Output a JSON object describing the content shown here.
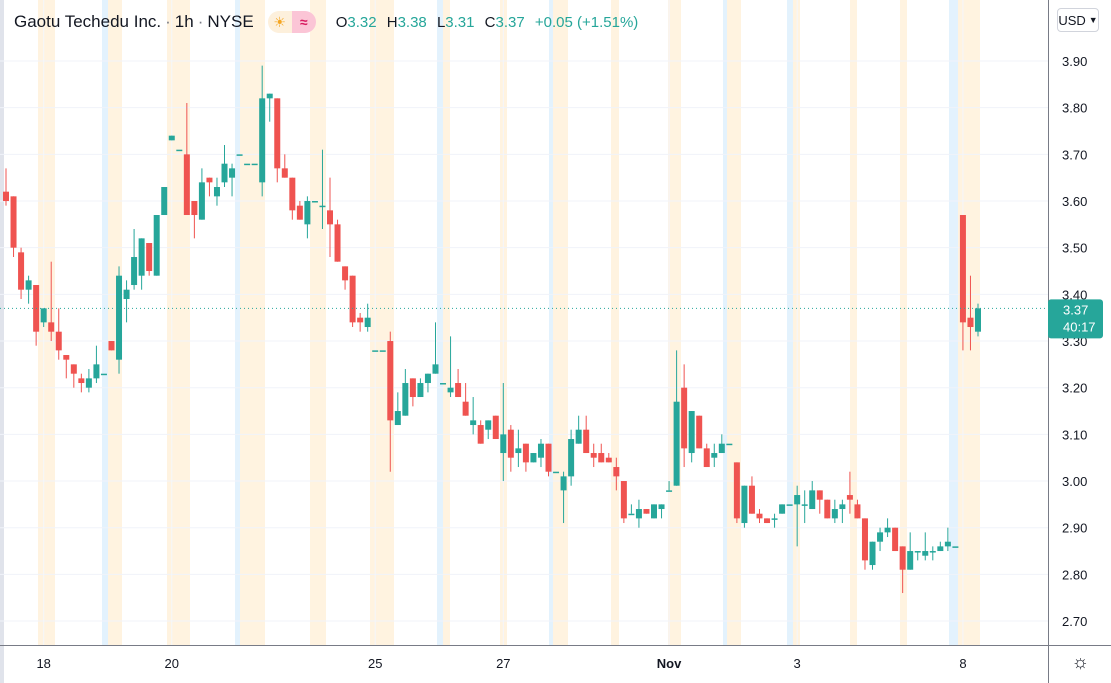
{
  "legend": {
    "symbol": "Gaotu Techedu Inc.",
    "interval": "1h",
    "exchange": "NYSE",
    "separator": "·",
    "session_icon": "sun-icon",
    "adjust_icon": "wave-icon",
    "open_label": "O",
    "open": "3.32",
    "high_label": "H",
    "high": "3.38",
    "low_label": "L",
    "low": "3.31",
    "close_label": "C",
    "close": "3.37",
    "change": "+0.05 (+1.51%)"
  },
  "currency": "USD",
  "last_price": {
    "price": "3.37",
    "countdown": "40:17"
  },
  "settings_icon": "gear-icon",
  "colors": {
    "up": "#26a69a",
    "down": "#ef5350",
    "premarket": "#e3f2fd",
    "postmarket": "#fff3e0"
  },
  "chart_data": {
    "type": "candlestick",
    "ylim": [
      2.65,
      3.93
    ],
    "y_ticks": [
      "2.70",
      "2.80",
      "2.90",
      "3.00",
      "3.10",
      "3.20",
      "3.30",
      "3.40",
      "3.50",
      "3.60",
      "3.70",
      "3.80",
      "3.90"
    ],
    "x_tick_labels": [
      {
        "label": "18",
        "candle": 5
      },
      {
        "label": "20",
        "candle": 22
      },
      {
        "label": "25",
        "candle": 49
      },
      {
        "label": "27",
        "candle": 66
      },
      {
        "label": "Nov",
        "candle": 88
      },
      {
        "label": "3",
        "candle": 105
      },
      {
        "label": "8",
        "candle": 127
      }
    ],
    "grid": true,
    "last_close": 3.37,
    "ohlc": [
      [
        3.62,
        3.67,
        3.59,
        3.6
      ],
      [
        3.61,
        3.61,
        3.48,
        3.5
      ],
      [
        3.49,
        3.5,
        3.39,
        3.41
      ],
      [
        3.41,
        3.44,
        3.38,
        3.43
      ],
      [
        3.42,
        3.42,
        3.29,
        3.32
      ],
      [
        3.34,
        3.37,
        3.33,
        3.37
      ],
      [
        3.34,
        3.47,
        3.3,
        3.32
      ],
      [
        3.32,
        3.37,
        3.26,
        3.28
      ],
      [
        3.27,
        3.27,
        3.22,
        3.26
      ],
      [
        3.25,
        3.25,
        3.2,
        3.23
      ],
      [
        3.22,
        3.23,
        3.19,
        3.21
      ],
      [
        3.2,
        3.24,
        3.19,
        3.22
      ],
      [
        3.22,
        3.29,
        3.21,
        3.25
      ],
      [
        3.23,
        3.23,
        3.23,
        3.23
      ],
      [
        3.3,
        3.3,
        3.28,
        3.28
      ],
      [
        3.26,
        3.46,
        3.23,
        3.44
      ],
      [
        3.39,
        3.43,
        3.34,
        3.41
      ],
      [
        3.42,
        3.54,
        3.41,
        3.48
      ],
      [
        3.44,
        3.52,
        3.41,
        3.52
      ],
      [
        3.51,
        3.51,
        3.44,
        3.45
      ],
      [
        3.44,
        3.57,
        3.44,
        3.57
      ],
      [
        3.57,
        3.63,
        3.57,
        3.63
      ],
      [
        3.73,
        3.74,
        3.73,
        3.74
      ],
      [
        3.71,
        3.71,
        3.71,
        3.71
      ],
      [
        3.7,
        3.81,
        3.57,
        3.57
      ],
      [
        3.6,
        3.6,
        3.52,
        3.57
      ],
      [
        3.56,
        3.67,
        3.56,
        3.64
      ],
      [
        3.65,
        3.65,
        3.61,
        3.64
      ],
      [
        3.61,
        3.65,
        3.59,
        3.63
      ],
      [
        3.64,
        3.72,
        3.63,
        3.68
      ],
      [
        3.65,
        3.68,
        3.61,
        3.67
      ],
      [
        3.7,
        3.7,
        3.7,
        3.7
      ],
      [
        3.68,
        3.68,
        3.68,
        3.68
      ],
      [
        3.68,
        3.68,
        3.68,
        3.68
      ],
      [
        3.64,
        3.89,
        3.61,
        3.82
      ],
      [
        3.82,
        3.83,
        3.77,
        3.83
      ],
      [
        3.82,
        3.82,
        3.64,
        3.67
      ],
      [
        3.67,
        3.7,
        3.65,
        3.65
      ],
      [
        3.65,
        3.65,
        3.56,
        3.58
      ],
      [
        3.59,
        3.6,
        3.56,
        3.56
      ],
      [
        3.55,
        3.61,
        3.52,
        3.6
      ],
      [
        3.6,
        3.6,
        3.6,
        3.6
      ],
      [
        3.59,
        3.71,
        3.54,
        3.59
      ],
      [
        3.58,
        3.65,
        3.48,
        3.55
      ],
      [
        3.55,
        3.56,
        3.47,
        3.47
      ],
      [
        3.46,
        3.46,
        3.41,
        3.43
      ],
      [
        3.44,
        3.44,
        3.33,
        3.34
      ],
      [
        3.35,
        3.36,
        3.32,
        3.34
      ],
      [
        3.33,
        3.38,
        3.32,
        3.35
      ],
      [
        3.28,
        3.28,
        3.28,
        3.28
      ],
      [
        3.28,
        3.28,
        3.28,
        3.28
      ],
      [
        3.3,
        3.32,
        3.02,
        3.13
      ],
      [
        3.12,
        3.19,
        3.12,
        3.15
      ],
      [
        3.14,
        3.24,
        3.14,
        3.21
      ],
      [
        3.22,
        3.22,
        3.16,
        3.18
      ],
      [
        3.18,
        3.22,
        3.18,
        3.21
      ],
      [
        3.21,
        3.23,
        3.19,
        3.23
      ],
      [
        3.23,
        3.34,
        3.23,
        3.25
      ],
      [
        3.21,
        3.21,
        3.21,
        3.21
      ],
      [
        3.19,
        3.31,
        3.18,
        3.2
      ],
      [
        3.21,
        3.24,
        3.18,
        3.18
      ],
      [
        3.17,
        3.21,
        3.14,
        3.14
      ],
      [
        3.12,
        3.18,
        3.1,
        3.13
      ],
      [
        3.12,
        3.13,
        3.08,
        3.08
      ],
      [
        3.11,
        3.13,
        3.09,
        3.13
      ],
      [
        3.14,
        3.14,
        3.09,
        3.09
      ],
      [
        3.06,
        3.21,
        3.0,
        3.1
      ],
      [
        3.11,
        3.12,
        3.02,
        3.05
      ],
      [
        3.06,
        3.11,
        3.03,
        3.07
      ],
      [
        3.08,
        3.08,
        3.02,
        3.04
      ],
      [
        3.04,
        3.06,
        3.04,
        3.06
      ],
      [
        3.05,
        3.09,
        3.03,
        3.08
      ],
      [
        3.08,
        3.08,
        3.01,
        3.02
      ],
      [
        3.02,
        3.02,
        3.02,
        3.02
      ],
      [
        2.98,
        3.02,
        2.91,
        3.01
      ],
      [
        3.01,
        3.11,
        2.99,
        3.09
      ],
      [
        3.08,
        3.14,
        3.08,
        3.11
      ],
      [
        3.11,
        3.14,
        3.06,
        3.06
      ],
      [
        3.06,
        3.08,
        3.03,
        3.05
      ],
      [
        3.06,
        3.08,
        3.04,
        3.04
      ],
      [
        3.05,
        3.06,
        3.04,
        3.04
      ],
      [
        3.03,
        3.05,
        2.98,
        3.01
      ],
      [
        3.0,
        3.0,
        2.91,
        2.92
      ],
      [
        2.93,
        2.95,
        2.93,
        2.93
      ],
      [
        2.92,
        2.96,
        2.9,
        2.94
      ],
      [
        2.94,
        2.94,
        2.93,
        2.93
      ],
      [
        2.92,
        2.95,
        2.92,
        2.95
      ],
      [
        2.94,
        2.95,
        2.92,
        2.95
      ],
      [
        2.98,
        3.0,
        2.98,
        2.98
      ],
      [
        2.99,
        3.28,
        2.99,
        3.17
      ],
      [
        3.2,
        3.25,
        3.03,
        3.07
      ],
      [
        3.06,
        3.15,
        3.04,
        3.15
      ],
      [
        3.14,
        3.14,
        3.07,
        3.07
      ],
      [
        3.07,
        3.08,
        3.03,
        3.03
      ],
      [
        3.05,
        3.08,
        3.03,
        3.06
      ],
      [
        3.06,
        3.1,
        3.06,
        3.08
      ],
      [
        3.08,
        3.08,
        3.08,
        3.08
      ],
      [
        3.04,
        3.04,
        2.91,
        2.92
      ],
      [
        2.91,
        2.99,
        2.9,
        2.99
      ],
      [
        2.99,
        3.01,
        2.93,
        2.93
      ],
      [
        2.93,
        2.94,
        2.91,
        2.92
      ],
      [
        2.92,
        2.92,
        2.91,
        2.91
      ],
      [
        2.92,
        2.93,
        2.9,
        2.92
      ],
      [
        2.93,
        2.95,
        2.93,
        2.95
      ],
      [
        2.95,
        2.95,
        2.95,
        2.95
      ],
      [
        2.95,
        2.99,
        2.86,
        2.97
      ],
      [
        2.95,
        2.98,
        2.91,
        2.95
      ],
      [
        2.94,
        3.0,
        2.94,
        2.98
      ],
      [
        2.98,
        2.98,
        2.93,
        2.96
      ],
      [
        2.96,
        2.96,
        2.92,
        2.92
      ],
      [
        2.92,
        2.96,
        2.91,
        2.94
      ],
      [
        2.94,
        2.96,
        2.91,
        2.95
      ],
      [
        2.97,
        3.02,
        2.93,
        2.96
      ],
      [
        2.95,
        2.96,
        2.92,
        2.92
      ],
      [
        2.92,
        2.92,
        2.81,
        2.83
      ],
      [
        2.82,
        2.87,
        2.81,
        2.87
      ],
      [
        2.87,
        2.9,
        2.85,
        2.89
      ],
      [
        2.89,
        2.92,
        2.88,
        2.9
      ],
      [
        2.9,
        2.9,
        2.85,
        2.85
      ],
      [
        2.86,
        2.86,
        2.76,
        2.81
      ],
      [
        2.81,
        2.89,
        2.81,
        2.85
      ],
      [
        2.85,
        2.85,
        2.83,
        2.85
      ],
      [
        2.84,
        2.89,
        2.83,
        2.85
      ],
      [
        2.85,
        2.86,
        2.83,
        2.85
      ],
      [
        2.85,
        2.87,
        2.85,
        2.86
      ],
      [
        2.86,
        2.9,
        2.85,
        2.87
      ],
      [
        2.86,
        2.86,
        2.86,
        2.86
      ],
      [
        3.57,
        3.57,
        3.28,
        3.34
      ],
      [
        3.35,
        3.44,
        3.28,
        3.33
      ],
      [
        3.32,
        3.38,
        3.31,
        3.37
      ]
    ]
  }
}
